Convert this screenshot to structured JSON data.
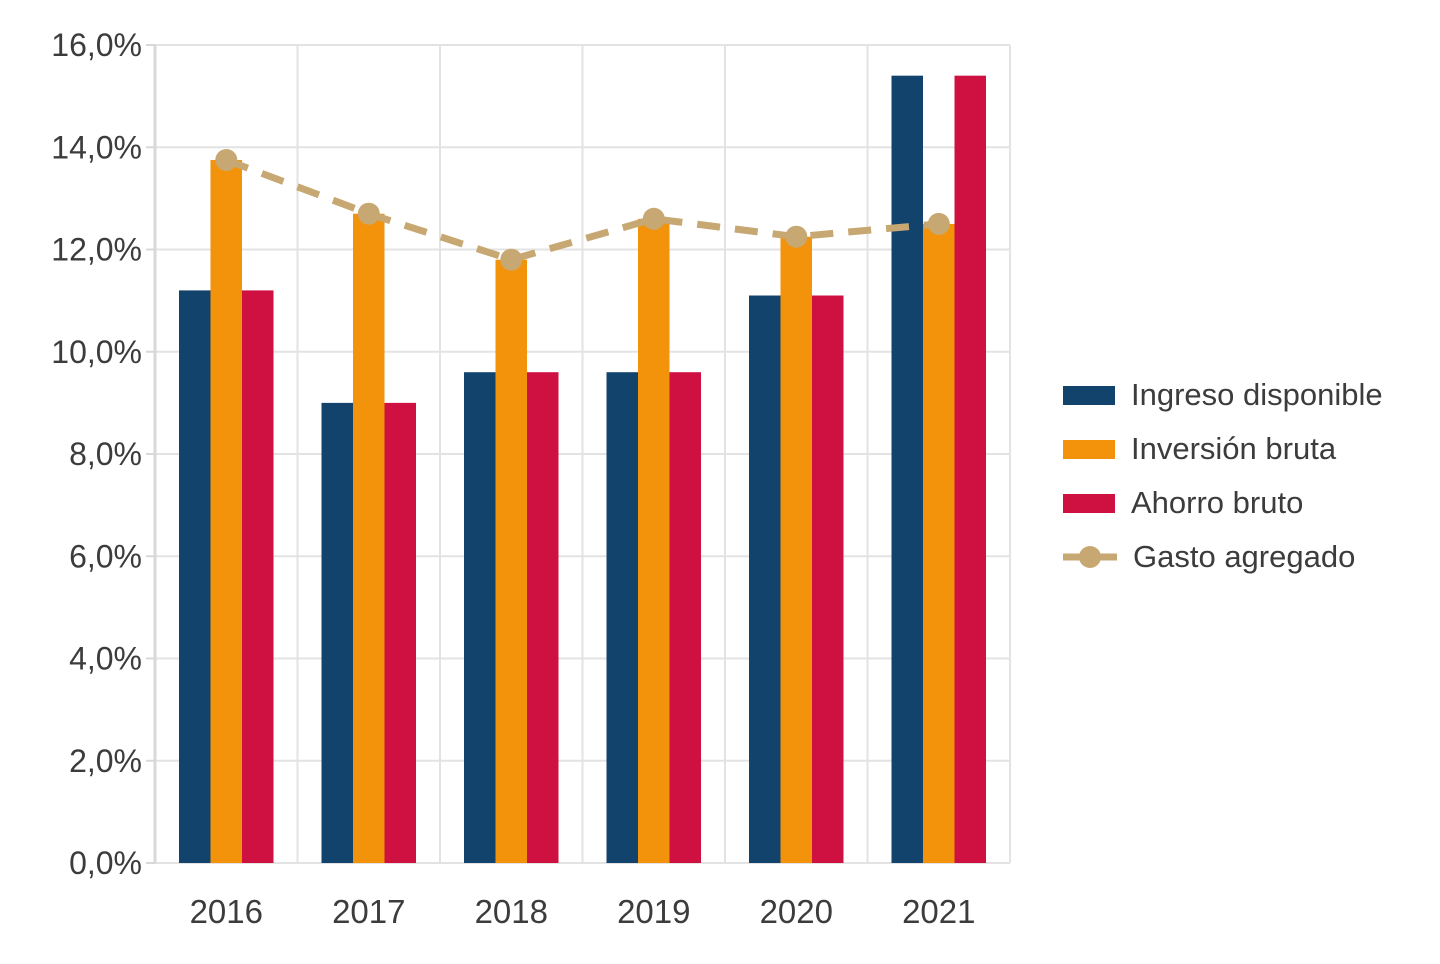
{
  "chart_data": {
    "type": "bar",
    "categories": [
      "2016",
      "2017",
      "2018",
      "2019",
      "2020",
      "2021"
    ],
    "series": [
      {
        "name": "Ingreso disponible",
        "kind": "bar",
        "color": "#12436D",
        "values": [
          11.2,
          9.0,
          9.6,
          9.6,
          11.1,
          15.4
        ]
      },
      {
        "name": "Inversión bruta",
        "kind": "bar",
        "color": "#F2930B",
        "values": [
          13.75,
          12.7,
          11.8,
          12.6,
          12.25,
          12.5
        ]
      },
      {
        "name": "Ahorro bruto",
        "kind": "bar",
        "color": "#CE1141",
        "values": [
          11.2,
          9.0,
          9.6,
          9.6,
          11.1,
          15.4
        ]
      },
      {
        "name": "Gasto agregado",
        "kind": "line",
        "color": "#C7A873",
        "values": [
          13.75,
          12.7,
          11.8,
          12.6,
          12.25,
          12.5
        ]
      }
    ],
    "title": "",
    "xlabel": "",
    "ylabel": "",
    "ylim": [
      0,
      16
    ],
    "ytick_step": 2,
    "ytick_labels": [
      "0,0%",
      "2,0%",
      "4,0%",
      "6,0%",
      "8,0%",
      "10,0%",
      "12,0%",
      "14,0%",
      "16,0%"
    ],
    "grid": true,
    "legend_position": "right",
    "colors": {
      "grid": "#E3E3E3",
      "axis": "#D8D8D8",
      "text": "#3C3C3C",
      "background": "#FFFFFF"
    }
  }
}
